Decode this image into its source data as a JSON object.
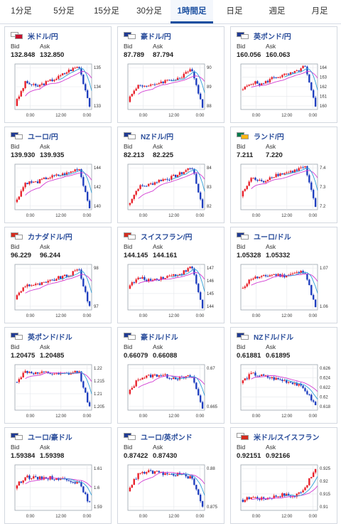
{
  "tabs": [
    {
      "label": "1分足",
      "active": false
    },
    {
      "label": "5分足",
      "active": false
    },
    {
      "label": "15分足",
      "active": false
    },
    {
      "label": "30分足",
      "active": false
    },
    {
      "label": "1時間足",
      "active": true
    },
    {
      "label": "日足",
      "active": false
    },
    {
      "label": "週足",
      "active": false
    },
    {
      "label": "月足",
      "active": false
    }
  ],
  "labels": {
    "bid": "Bid",
    "ask": "Ask"
  },
  "colors": {
    "up": "#e8202a",
    "down": "#1f3fbf",
    "ma_short": "#2e9fd8",
    "ma_long": "#d23bd2",
    "active_tab": "#1b4fa0"
  },
  "cards": [
    {
      "pair": "米ドル/円",
      "bid": "132.848",
      "ask": "132.850",
      "flags": [
        "#ffffff",
        "#c8102e"
      ],
      "x_labels": [
        "0:00",
        "12:00",
        "0:00"
      ],
      "y_labels": [
        "135",
        "134",
        "133"
      ],
      "chart_data": {
        "type": "candlestick",
        "trend": [
          0.1,
          0.6,
          0.5,
          0.6,
          0.7,
          0.85,
          0.95,
          0.1
        ],
        "ylim": [
          132.5,
          135.5
        ]
      }
    },
    {
      "pair": "豪ドル/円",
      "bid": "87.789",
      "ask": "87.794",
      "flags": [
        "#1f3a93",
        "#ffffff"
      ],
      "x_labels": [
        "0:00",
        "12:00",
        "0:00"
      ],
      "y_labels": [
        "90",
        "89",
        "88"
      ],
      "chart_data": {
        "type": "candlestick",
        "trend": [
          0.2,
          0.55,
          0.5,
          0.6,
          0.65,
          0.7,
          0.9,
          0.05
        ],
        "ylim": [
          87.6,
          90.4
        ]
      }
    },
    {
      "pair": "英ポンド/円",
      "bid": "160.056",
      "ask": "160.063",
      "flags": [
        "#1f3a93",
        "#ffffff"
      ],
      "x_labels": [
        "0:00",
        "12:00",
        "0:00"
      ],
      "y_labels": [
        "164",
        "163",
        "162",
        "161",
        "160"
      ],
      "chart_data": {
        "type": "candlestick",
        "trend": [
          0.4,
          0.6,
          0.55,
          0.7,
          0.75,
          0.8,
          0.95,
          0.05
        ],
        "ylim": [
          159.6,
          164.4
        ]
      }
    },
    {
      "pair": "ユーロ/円",
      "bid": "139.930",
      "ask": "139.935",
      "flags": [
        "#1f3a93",
        "#ffffff"
      ],
      "x_labels": [
        "0:00",
        "12:00",
        "0:00"
      ],
      "y_labels": [
        "144",
        "142",
        "140"
      ],
      "chart_data": {
        "type": "candlestick",
        "trend": [
          0.15,
          0.6,
          0.6,
          0.7,
          0.75,
          0.8,
          0.92,
          0.05
        ],
        "ylim": [
          139.5,
          144.5
        ]
      }
    },
    {
      "pair": "NZドル/円",
      "bid": "82.213",
      "ask": "82.225",
      "flags": [
        "#1f3a93",
        "#ffffff"
      ],
      "x_labels": [
        "0:00",
        "12:00",
        "0:00"
      ],
      "y_labels": [
        "84",
        "83",
        "82"
      ],
      "chart_data": {
        "type": "candlestick",
        "trend": [
          0.1,
          0.5,
          0.55,
          0.65,
          0.7,
          0.8,
          0.95,
          0.05
        ],
        "ylim": [
          81.8,
          84.2
        ]
      }
    },
    {
      "pair": "ランド/円",
      "bid": "7.211",
      "ask": "7.220",
      "flags": [
        "#007a4d",
        "#ffb612"
      ],
      "x_labels": [
        "0:00",
        "12:00",
        "0:00"
      ],
      "y_labels": [
        "7.4",
        "7.3",
        "7.2"
      ],
      "chart_data": {
        "type": "candlestick",
        "trend": [
          0.3,
          0.7,
          0.6,
          0.75,
          0.8,
          0.85,
          0.95,
          0.05
        ],
        "ylim": [
          7.15,
          7.45
        ]
      }
    },
    {
      "pair": "カナダドル/円",
      "bid": "96.229",
      "ask": "96.244",
      "flags": [
        "#d52b1e",
        "#ffffff"
      ],
      "x_labels": [
        "0:00",
        "12:00",
        "0:00"
      ],
      "y_labels": [
        "98",
        "97"
      ],
      "chart_data": {
        "type": "candlestick",
        "trend": [
          0.25,
          0.55,
          0.55,
          0.6,
          0.7,
          0.75,
          0.9,
          0.05
        ],
        "ylim": [
          95.8,
          98.6
        ]
      }
    },
    {
      "pair": "スイスフラン/円",
      "bid": "144.145",
      "ask": "144.161",
      "flags": [
        "#d52b1e",
        "#ffffff"
      ],
      "x_labels": [
        "0:00",
        "12:00",
        "0:00"
      ],
      "y_labels": [
        "147",
        "146",
        "145",
        "144"
      ],
      "chart_data": {
        "type": "candlestick",
        "trend": [
          0.5,
          0.7,
          0.65,
          0.7,
          0.75,
          0.8,
          0.95,
          0.05
        ],
        "ylim": [
          143.6,
          147.4
        ]
      }
    },
    {
      "pair": "ユーロ/ドル",
      "bid": "1.05328",
      "ask": "1.05332",
      "flags": [
        "#1f3a93",
        "#ffffff"
      ],
      "x_labels": [
        "0:00",
        "12:00",
        "0:00"
      ],
      "y_labels": [
        "1.07",
        "1.06"
      ],
      "chart_data": {
        "type": "candlestick",
        "trend": [
          0.45,
          0.7,
          0.72,
          0.78,
          0.75,
          0.8,
          0.85,
          0.05
        ],
        "ylim": [
          1.05,
          1.075
        ]
      }
    },
    {
      "pair": "英ポンド/ドル",
      "bid": "1.20475",
      "ask": "1.20485",
      "flags": [
        "#1f3a93",
        "#ffffff"
      ],
      "x_labels": [
        "0:00",
        "12:00",
        "0:00"
      ],
      "y_labels": [
        "1.22",
        "1.215",
        "1.21",
        "1.205"
      ],
      "chart_data": {
        "type": "candlestick",
        "trend": [
          0.6,
          0.85,
          0.8,
          0.82,
          0.78,
          0.8,
          0.85,
          0.05
        ],
        "ylim": [
          1.2,
          1.225
        ]
      }
    },
    {
      "pair": "豪ドル/ドル",
      "bid": "0.66079",
      "ask": "0.66088",
      "flags": [
        "#1f3a93",
        "#ffffff"
      ],
      "x_labels": [
        "0:00",
        "12:00",
        "0:00"
      ],
      "y_labels": [
        "0.67",
        "0.665"
      ],
      "chart_data": {
        "type": "candlestick",
        "trend": [
          0.35,
          0.7,
          0.75,
          0.78,
          0.72,
          0.7,
          0.75,
          0.05
        ],
        "ylim": [
          0.658,
          0.672
        ]
      }
    },
    {
      "pair": "NZドル/ドル",
      "bid": "0.61881",
      "ask": "0.61895",
      "flags": [
        "#1f3a93",
        "#ffffff"
      ],
      "x_labels": [
        "0:00",
        "12:00",
        "0:00"
      ],
      "y_labels": [
        "0.626",
        "0.624",
        "0.622",
        "0.62",
        "0.618"
      ],
      "chart_data": {
        "type": "candlestick",
        "trend": [
          0.6,
          0.8,
          0.75,
          0.7,
          0.65,
          0.6,
          0.45,
          0.1
        ],
        "ylim": [
          0.617,
          0.627
        ]
      }
    },
    {
      "pair": "ユーロ/豪ドル",
      "bid": "1.59384",
      "ask": "1.59398",
      "flags": [
        "#1f3a93",
        "#ffffff"
      ],
      "x_labels": [
        "0:00",
        "12:00",
        "0:00"
      ],
      "y_labels": [
        "1.61",
        "1.6",
        "1.59"
      ],
      "chart_data": {
        "type": "candlestick",
        "trend": [
          0.5,
          0.75,
          0.7,
          0.72,
          0.7,
          0.68,
          0.6,
          0.15
        ],
        "ylim": [
          1.585,
          1.615
        ]
      }
    },
    {
      "pair": "ユーロ/英ポンド",
      "bid": "0.87422",
      "ask": "0.87430",
      "flags": [
        "#1f3a93",
        "#ffffff"
      ],
      "x_labels": [
        "0:00",
        "12:00",
        "0:00"
      ],
      "y_labels": [
        "0.88",
        "0.875"
      ],
      "chart_data": {
        "type": "candlestick",
        "trend": [
          0.45,
          0.8,
          0.85,
          0.82,
          0.78,
          0.8,
          0.7,
          0.1
        ],
        "ylim": [
          0.872,
          0.885
        ]
      }
    },
    {
      "pair": "米ドル/スイスフラン",
      "bid": "0.92151",
      "ask": "0.92166",
      "flags": [
        "#ffffff",
        "#d52b1e"
      ],
      "x_labels": [
        "0:00",
        "12:00",
        "0:00"
      ],
      "y_labels": [
        "0.925",
        "0.92",
        "0.915",
        "0.91"
      ],
      "chart_data": {
        "type": "candlestick",
        "trend": [
          0.2,
          0.3,
          0.25,
          0.3,
          0.35,
          0.3,
          0.5,
          0.9
        ],
        "ylim": [
          0.908,
          0.927
        ]
      }
    }
  ]
}
